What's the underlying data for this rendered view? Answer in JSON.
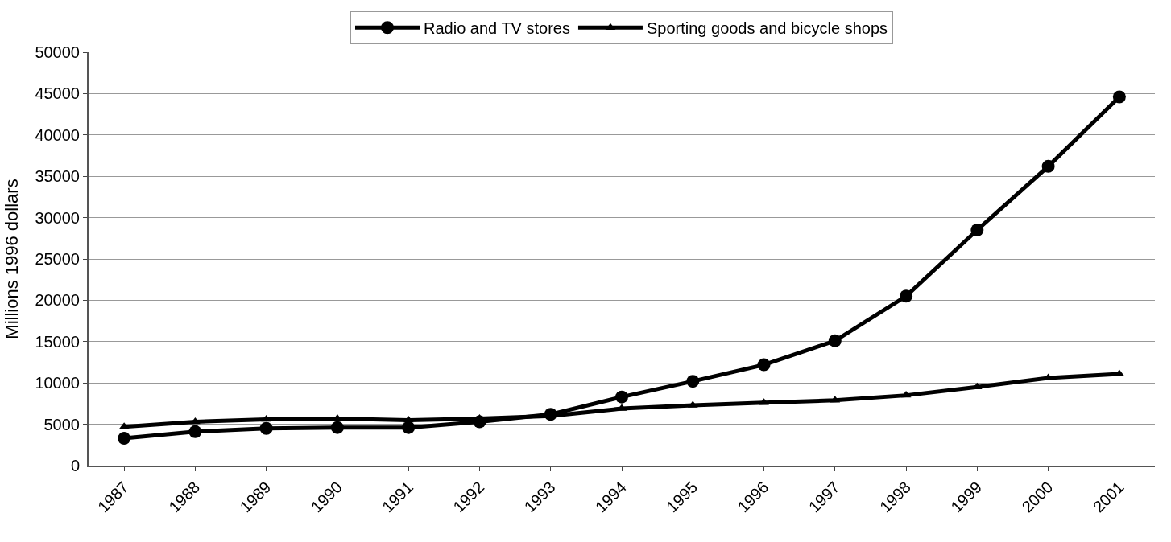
{
  "chart_data": {
    "type": "line",
    "ylabel": "Millions 1996 dollars",
    "categories": [
      "1987",
      "1988",
      "1989",
      "1990",
      "1991",
      "1992",
      "1993",
      "1994",
      "1995",
      "1996",
      "1997",
      "1998",
      "1999",
      "2000",
      "2001"
    ],
    "series": [
      {
        "name": "Radio and TV stores",
        "color": "#000000",
        "marker": "circle",
        "values": [
          3300,
          4100,
          4500,
          4600,
          4600,
          5300,
          6200,
          8300,
          10200,
          12200,
          15100,
          20500,
          28500,
          36200,
          44600
        ]
      },
      {
        "name": "Sporting goods and bicycle shops",
        "color": "#000000",
        "marker": "triangle",
        "values": [
          4700,
          5300,
          5600,
          5700,
          5500,
          5700,
          6000,
          6900,
          7300,
          7600,
          7900,
          8500,
          9500,
          10600,
          11100
        ]
      }
    ],
    "ylim": [
      0,
      50000
    ],
    "yticks": [
      0,
      5000,
      10000,
      15000,
      20000,
      25000,
      30000,
      35000,
      40000,
      45000,
      50000
    ],
    "grid": "y",
    "legend": "top",
    "line_style": "solid"
  }
}
